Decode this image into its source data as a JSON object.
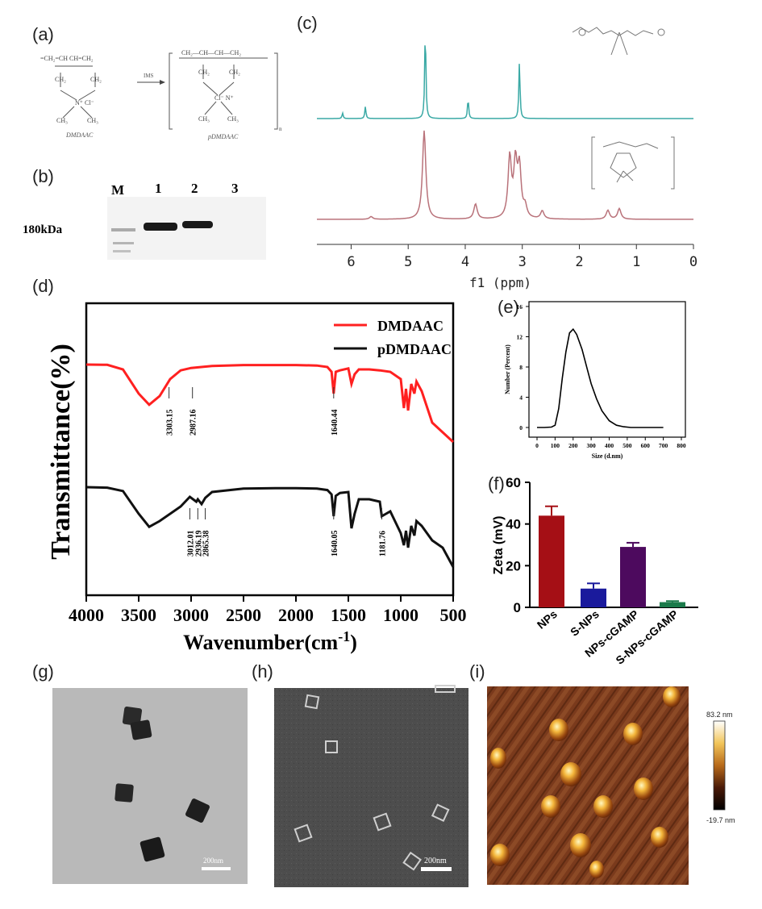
{
  "panels": {
    "a": {
      "label": "(a)",
      "monomer": "DMDAAC",
      "polymer": "pDMDAAC",
      "arrow_label": "IMS"
    },
    "b": {
      "label": "(b)",
      "marker": "180kDa",
      "lanes": [
        "M",
        "1",
        "2",
        "3"
      ]
    },
    "c": {
      "label": "(c)",
      "xlabel": "f1  (ppm)",
      "ticks": [
        "6",
        "5",
        "4",
        "3",
        "2",
        "1",
        "0"
      ]
    },
    "d": {
      "label": "(d)"
    },
    "e": {
      "label": "(e)"
    },
    "f": {
      "label": "(f)"
    },
    "g": {
      "label": "(g)",
      "scale": "200nm"
    },
    "h": {
      "label": "(h)",
      "scale": "200nm"
    },
    "i": {
      "label": "(i)",
      "scale_max": "83.2 nm",
      "scale_min": "-19.7 nm"
    }
  },
  "colors": {
    "dmdaac": "#ff2020",
    "pdmdaac": "#111111",
    "nmr_top": "#3aa9a5",
    "nmr_bottom": "#b9727a"
  },
  "chart_data": [
    {
      "panel": "c",
      "type": "line",
      "xlabel": "f1  (ppm)",
      "xlim": [
        6.6,
        0
      ],
      "x_ticks": [
        6,
        5,
        4,
        3,
        2,
        1,
        0
      ],
      "series": [
        {
          "peaks": [
            [
              6.15,
              0.06
            ],
            [
              5.75,
              0.13
            ],
            [
              4.7,
              1.0
            ],
            [
              3.95,
              0.22
            ],
            [
              3.05,
              0.62
            ]
          ]
        },
        {
          "peaks": [
            [
              5.65,
              0.03
            ],
            [
              4.72,
              1.0
            ],
            [
              3.82,
              0.17
            ],
            [
              3.22,
              0.68
            ],
            [
              3.12,
              0.6
            ],
            [
              3.05,
              0.55
            ],
            [
              2.95,
              0.12
            ],
            [
              2.65,
              0.09
            ],
            [
              1.5,
              0.1
            ],
            [
              1.3,
              0.12
            ]
          ]
        }
      ]
    },
    {
      "panel": "d",
      "type": "line",
      "xlabel": "Wavenumber(cm-1)",
      "ylabel": "Transmittance(%)",
      "xlim": [
        4000,
        500
      ],
      "x_ticks": [
        4000,
        3500,
        3000,
        2500,
        2000,
        1500,
        1000,
        500
      ],
      "legend_position": "top-right",
      "series": [
        {
          "name": "DMDAAC",
          "x": [
            4000,
            3800,
            3650,
            3500,
            3400,
            3300,
            3200,
            3100,
            3000,
            2950,
            2800,
            2500,
            2200,
            2000,
            1800,
            1700,
            1660,
            1640,
            1620,
            1580,
            1500,
            1470,
            1440,
            1400,
            1300,
            1200,
            1100,
            1000,
            970,
            950,
            930,
            900,
            870,
            850,
            800,
            700,
            600,
            500
          ],
          "y": [
            0,
            -0.5,
            -10,
            -60,
            -83,
            -65,
            -30,
            -12,
            -7,
            -6,
            -3,
            -1,
            -1,
            -1,
            -2,
            -5,
            -15,
            -60,
            -15,
            -12,
            -8,
            -40,
            -20,
            -10,
            -10,
            -12,
            -15,
            -30,
            -90,
            -50,
            -95,
            -40,
            -60,
            -35,
            -55,
            -120,
            -140,
            -160
          ],
          "annotations": [
            "3303.15",
            "2987.16",
            "1640.44"
          ]
        },
        {
          "name": "pDMDAAC",
          "x": [
            4000,
            3800,
            3650,
            3500,
            3400,
            3300,
            3100,
            3012,
            2950,
            2936,
            2900,
            2865,
            2800,
            2500,
            2200,
            2000,
            1800,
            1700,
            1660,
            1640,
            1620,
            1580,
            1500,
            1470,
            1440,
            1400,
            1300,
            1200,
            1181,
            1100,
            1000,
            970,
            950,
            930,
            900,
            870,
            850,
            800,
            700,
            600,
            500
          ],
          "y": [
            0,
            -1,
            -8,
            -55,
            -82,
            -70,
            -40,
            -20,
            -30,
            -25,
            -35,
            -22,
            -10,
            -3,
            -2,
            -2,
            -3,
            -6,
            -15,
            -60,
            -18,
            -12,
            -10,
            -85,
            -55,
            -25,
            -25,
            -30,
            -60,
            -50,
            -95,
            -120,
            -90,
            -125,
            -80,
            -100,
            -70,
            -80,
            -110,
            -125,
            -165
          ],
          "annotations": [
            "3012.01",
            "2936.19",
            "2865.38",
            "1640.05",
            "1181.76"
          ]
        }
      ]
    },
    {
      "panel": "e",
      "type": "line",
      "xlabel": "Size (d.nm)",
      "ylabel": "Number (Percent)",
      "xlim": [
        0,
        800
      ],
      "ylim": [
        0,
        16
      ],
      "x_ticks": [
        0,
        100,
        200,
        300,
        400,
        500,
        600,
        700,
        800
      ],
      "y_ticks": [
        0,
        4,
        8,
        12,
        16
      ],
      "x": [
        0,
        40,
        80,
        100,
        120,
        140,
        160,
        180,
        200,
        220,
        250,
        280,
        300,
        330,
        360,
        400,
        440,
        480,
        520,
        600,
        700
      ],
      "y": [
        0,
        0,
        0.05,
        0.3,
        2.5,
        6.5,
        10,
        12.5,
        13,
        12.3,
        10.3,
        7.6,
        5.8,
        3.8,
        2.2,
        0.9,
        0.3,
        0.1,
        0,
        0,
        0
      ]
    },
    {
      "panel": "f",
      "type": "bar",
      "ylabel": "Zeta (mV)",
      "ylim": [
        0,
        60
      ],
      "y_ticks": [
        0,
        20,
        40,
        60
      ],
      "categories": [
        "NPs",
        "S-NPs",
        "NPs-cGAMP",
        "S-NPs-cGAMP"
      ],
      "values": [
        44,
        9,
        29,
        2.5
      ],
      "errors": [
        4.5,
        2.5,
        2,
        0.5
      ],
      "colors": [
        "#a50f15",
        "#1a1a9c",
        "#4d0a5e",
        "#1a7a4a"
      ]
    }
  ]
}
